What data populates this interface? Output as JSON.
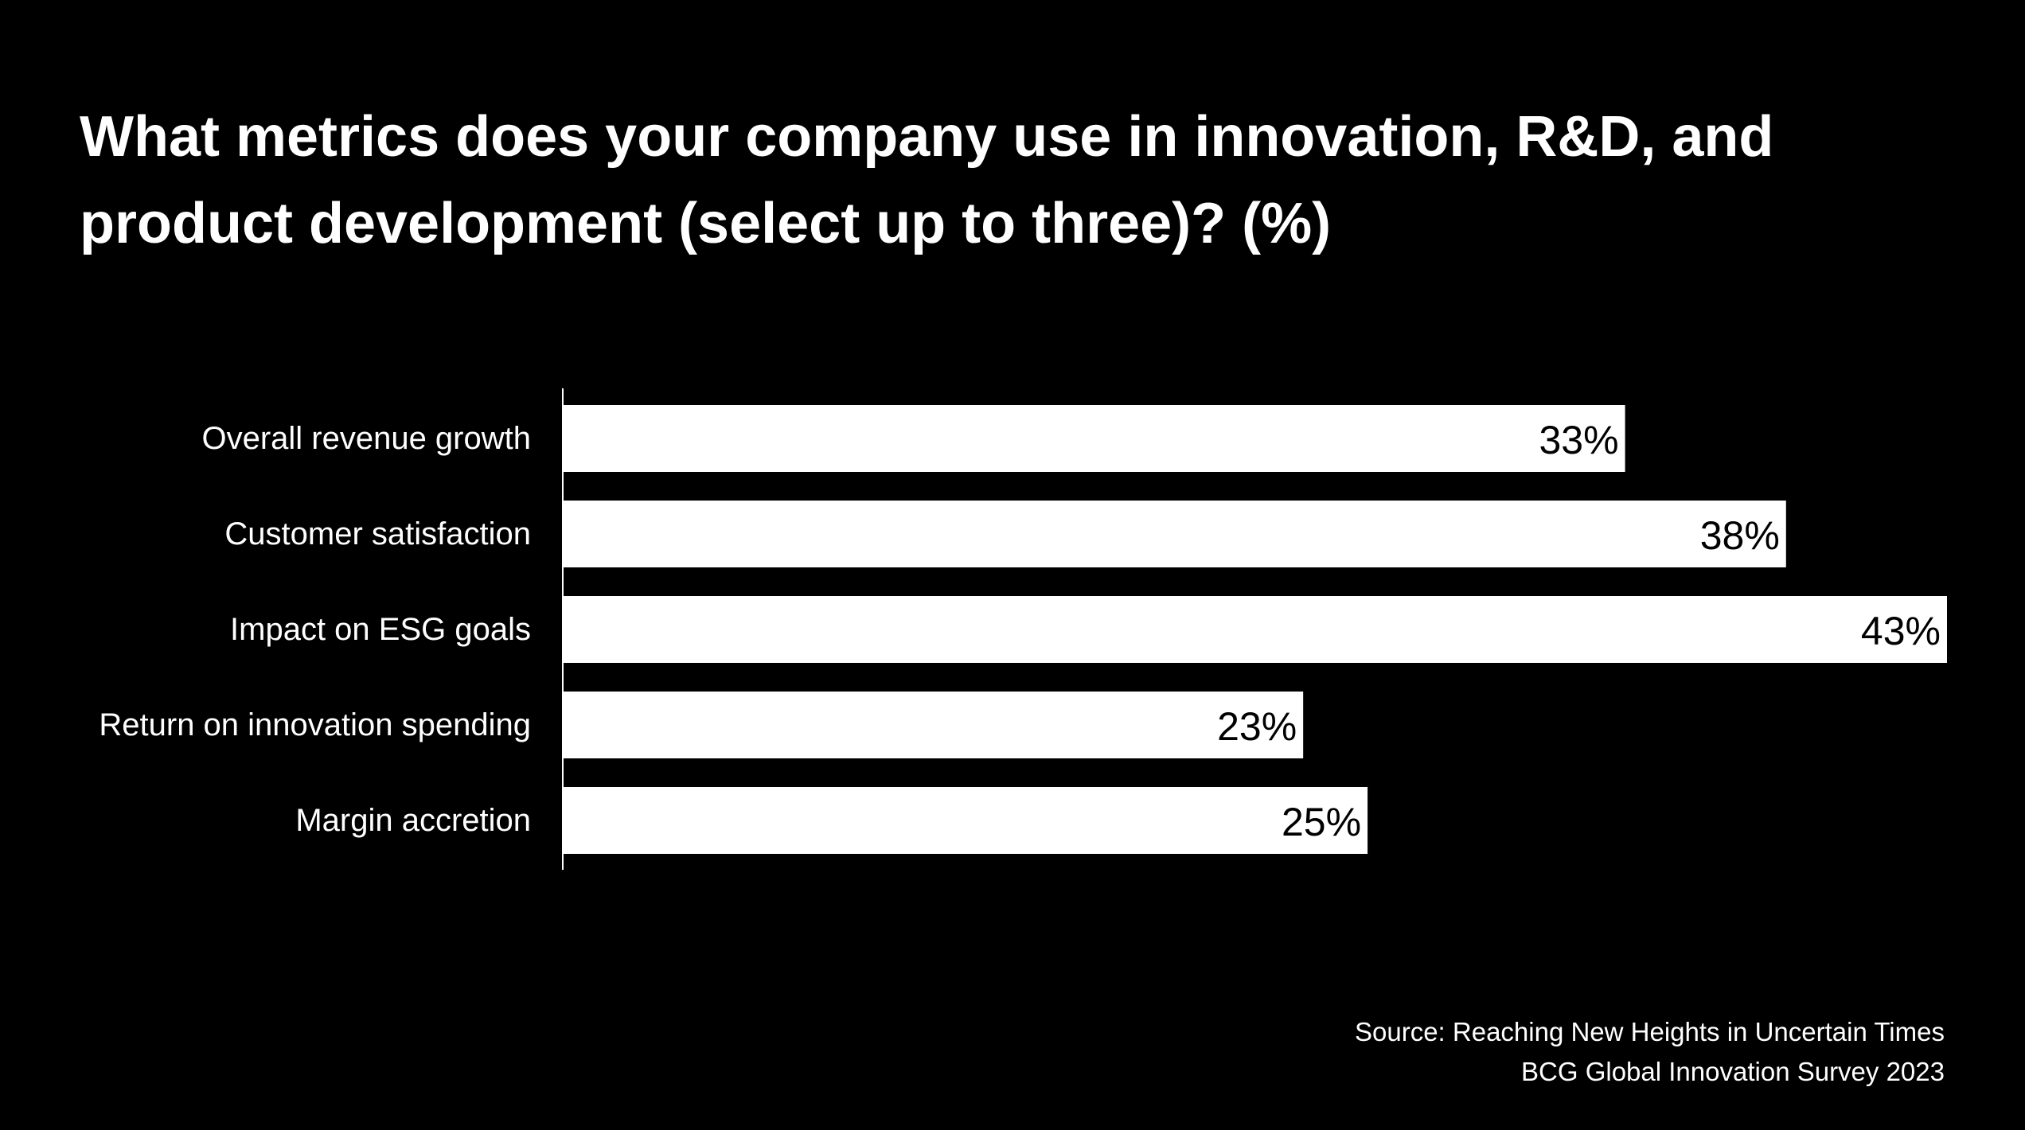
{
  "chart_data": {
    "type": "bar",
    "orientation": "horizontal",
    "title_lines": [
      "What metrics does your company use in innovation, R&D, and",
      "product development (select up to three)? (%)"
    ],
    "categories": [
      "Overall revenue growth",
      "Customer satisfaction",
      "Impact on ESG goals",
      "Return on innovation spending",
      "Margin accretion"
    ],
    "values": [
      33,
      38,
      43,
      23,
      25
    ],
    "value_labels": [
      "33%",
      "38%",
      "43%",
      "23%",
      "25%"
    ],
    "unit": "%",
    "xlim": [
      0,
      43
    ],
    "grid": false,
    "bar_color": "#ffffff",
    "background_color": "#000000",
    "value_label_color": "#000000"
  },
  "source": {
    "line1": "Source: Reaching New Heights in Uncertain Times",
    "line2": "BCG Global Innovation Survey 2023"
  }
}
